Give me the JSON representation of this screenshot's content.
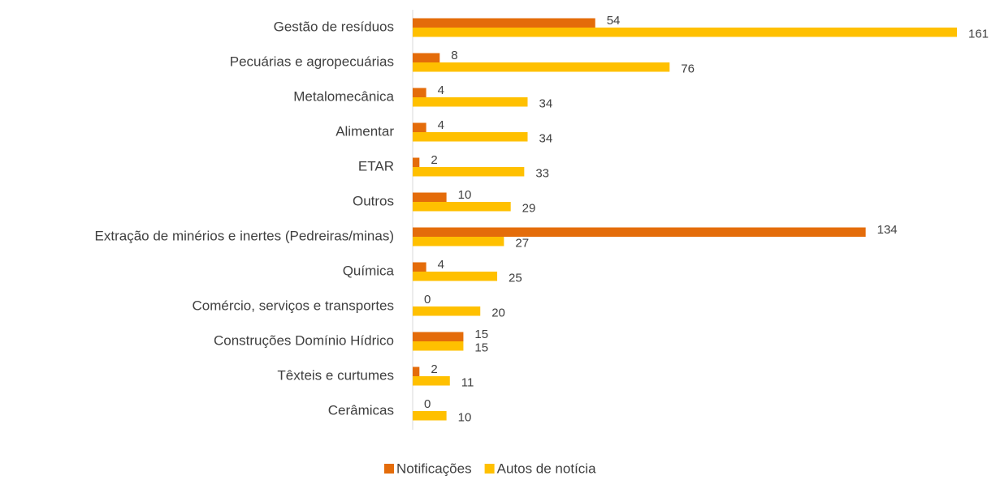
{
  "chart_data": {
    "type": "bar",
    "orientation": "horizontal",
    "categories": [
      "Gestão de resíduos",
      "Pecuárias e agropecuárias",
      "Metalomecânica",
      "Alimentar",
      "ETAR",
      "Outros",
      "Extração de minérios e inertes (Pedreiras/minas)",
      "Química",
      "Comércio, serviços e transportes",
      "Construções Domínio Hídrico",
      "Têxteis e curtumes",
      "Cerâmicas"
    ],
    "series": [
      {
        "name": "Notificações",
        "color": "#e46c0a",
        "values": [
          54,
          8,
          4,
          4,
          2,
          10,
          134,
          4,
          0,
          15,
          2,
          0
        ]
      },
      {
        "name": "Autos de notícia",
        "color": "#ffc000",
        "values": [
          161,
          76,
          34,
          34,
          33,
          29,
          27,
          25,
          20,
          15,
          11,
          10
        ]
      }
    ],
    "legend": "bottom"
  }
}
